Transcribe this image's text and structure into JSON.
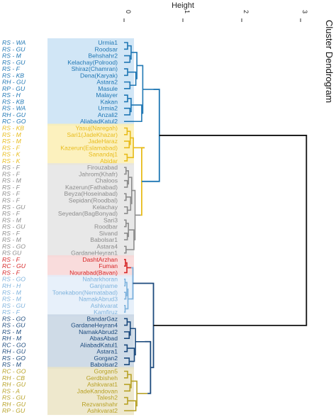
{
  "chart_data": {
    "type": "dendrogram",
    "title": "Cluster Dendrogram",
    "ylabel": "Height",
    "height_ticks": [
      0,
      1,
      2,
      3
    ],
    "clusters": [
      {
        "color": "#1f77b4",
        "bg": "#c9e2f5",
        "merge_height": 0.5,
        "leaves": [
          {
            "name": "Urmia1",
            "code": "RS - WA"
          },
          {
            "name": "Roodsar",
            "code": "RS - GU"
          },
          {
            "name": "Behshahr2",
            "code": "RS - M"
          },
          {
            "name": "Kelachay(Polrood)",
            "code": "RS - GU"
          },
          {
            "name": "Shiraz(Chamran)",
            "code": "RS - F"
          },
          {
            "name": "Dena(Karyak)",
            "code": "RS - KB"
          },
          {
            "name": "Astara2",
            "code": "RH - GU"
          },
          {
            "name": "Masule",
            "code": "RP - GU"
          },
          {
            "name": "Malayer",
            "code": "RS - H"
          },
          {
            "name": "Kakan",
            "code": "RS - KB"
          },
          {
            "name": "Urmia2",
            "code": "RS - WA"
          },
          {
            "name": "Anzali2",
            "code": "RH - GU"
          },
          {
            "name": "AliabadKatul2",
            "code": "RC - GO"
          }
        ]
      },
      {
        "color": "#e8bc1c",
        "bg": "#fbeeb3",
        "merge_height": 0.35,
        "leaves": [
          {
            "name": "Yasuj(Naregah)",
            "code": "RS - KB"
          },
          {
            "name": "Sari1(JadeKhazar)",
            "code": "RS - M"
          },
          {
            "name": "JadeHaraz",
            "code": "RS - M"
          },
          {
            "name": "Kazerun(Eslamabad)",
            "code": "RS - F"
          },
          {
            "name": "Sanandaj1",
            "code": "RS - K"
          },
          {
            "name": "Abidar",
            "code": "RS - K"
          }
        ]
      },
      {
        "color": "#8c8c8c",
        "bg": "#e4e4e4",
        "merge_height": 0.28,
        "leaves": [
          {
            "name": "Firouzabad",
            "code": "RS - F"
          },
          {
            "name": "Jahrom(Khafr)",
            "code": "RS - F"
          },
          {
            "name": "Chaloos",
            "code": "RS - M"
          },
          {
            "name": "Kazerun(Fathabad)",
            "code": "RS - F"
          },
          {
            "name": "Beyza(Hoseinabad)",
            "code": "RS - F"
          },
          {
            "name": "Sepidan(Roodbal)",
            "code": "RS - F"
          },
          {
            "name": "Kelachay",
            "code": "RS - GU"
          },
          {
            "name": "Seyedan(BagBonyad)",
            "code": "RS - F"
          },
          {
            "name": "Sari3",
            "code": "RS - M"
          },
          {
            "name": "Roodbar",
            "code": "RS - GU"
          },
          {
            "name": "Sivand",
            "code": "RS - F"
          },
          {
            "name": "Babolsar1",
            "code": "RS - M"
          },
          {
            "name": "Astara4",
            "code": "RS - GO"
          },
          {
            "name": "GardaneHeyran1",
            "code": "RS GU"
          }
        ]
      },
      {
        "color": "#d62728",
        "bg": "#f8d6d6",
        "merge_height": 0.12,
        "leaves": [
          {
            "name": "DashtArzhan",
            "code": "RS - F"
          },
          {
            "name": "Fuman",
            "code": "RC - GU"
          },
          {
            "name": "Nourabad(Bavan)",
            "code": "RS - F"
          }
        ]
      },
      {
        "color": "#7fb3dd",
        "bg": "#e3edf9",
        "merge_height": 0.12,
        "leaves": [
          {
            "name": "Naharkhoran",
            "code": "RS - GO"
          },
          {
            "name": "Ganjname",
            "code": "RH - H"
          },
          {
            "name": "Tonekabon(Nematabad)",
            "code": "RS - M"
          },
          {
            "name": "NamakAbrud3",
            "code": "RS - M"
          },
          {
            "name": "Ashkvarat",
            "code": "RS - GU"
          },
          {
            "name": "Kamfiruz",
            "code": "RS - F"
          }
        ]
      },
      {
        "color": "#1c4a7d",
        "bg": "#c7d5e3",
        "merge_height": 0.35,
        "leaves": [
          {
            "name": "BandarGaz",
            "code": "RS - GO"
          },
          {
            "name": "GardaneHeyran4",
            "code": "RS - GU"
          },
          {
            "name": "NamakAbrud2",
            "code": "RS - M"
          },
          {
            "name": "AbasAbad",
            "code": "RH - M"
          },
          {
            "name": "AliabadKatul1",
            "code": "RC - GO"
          },
          {
            "name": "Astara1",
            "code": "RH - GU"
          },
          {
            "name": "Gorgan2",
            "code": "RS - GO"
          },
          {
            "name": "Babolsar2",
            "code": "RS - M"
          }
        ]
      },
      {
        "color": "#b8a227",
        "bg": "#ebe4c4",
        "merge_height": 0.4,
        "leaves": [
          {
            "name": "Gorgan5",
            "code": "RC - GO"
          },
          {
            "name": "Gerdbisheh",
            "code": "RH - CB"
          },
          {
            "name": "Ashkvarat1",
            "code": "RH - GU"
          },
          {
            "name": "JadeKandovan",
            "code": "RS - A"
          },
          {
            "name": "Talesh2",
            "code": "RS - GU"
          },
          {
            "name": "Rezvanshahr",
            "code": "RH - GU"
          },
          {
            "name": "Ashkvarat2",
            "code": "RP - GU"
          }
        ]
      }
    ],
    "top_merges": [
      {
        "left": "yellow+grey",
        "height": 0.3
      },
      {
        "left": "red+lightblue",
        "height": 0.15
      },
      {
        "left": "navy+olive",
        "height": 0.45
      },
      {
        "left": "lower group",
        "height": 0.5
      },
      {
        "left": "blue+upper-middle",
        "height": 0.6
      },
      {
        "left": "root",
        "height": 3.1
      }
    ],
    "legend": "none",
    "grid": false
  }
}
